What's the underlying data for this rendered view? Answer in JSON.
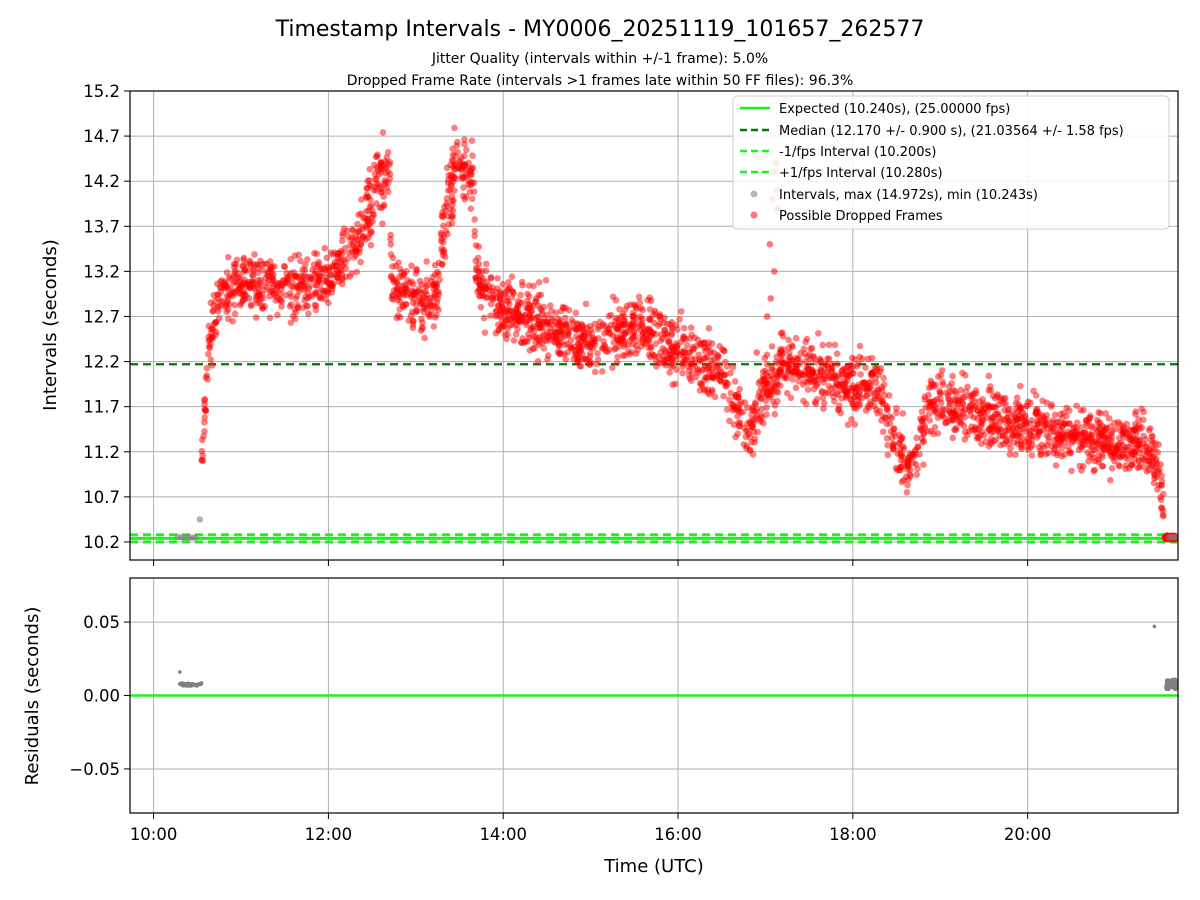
{
  "chart_data": [
    {
      "type": "scatter",
      "title": "Timestamp Intervals - MY0006_20251119_101657_262577",
      "subtitle_lines": [
        "Jitter Quality (intervals within +/-1 frame): 5.0%",
        "Dropped Frame Rate (intervals >1 frames late within 50 FF files): 96.3%"
      ],
      "xlabel": "",
      "ylabel": "Intervals (seconds)",
      "xlim_hours": [
        9.73,
        21.72
      ],
      "ylim": [
        10.0,
        15.2
      ],
      "yticks": [
        10.2,
        10.7,
        11.2,
        11.7,
        12.2,
        12.7,
        13.2,
        13.7,
        14.2,
        14.7,
        15.2
      ],
      "ytick_labels": [
        "10.2",
        "10.7",
        "11.2",
        "11.7",
        "12.2",
        "12.7",
        "13.2",
        "13.7",
        "14.2",
        "14.7",
        "15.2"
      ],
      "xticks_hours": [
        10,
        12,
        14,
        16,
        18,
        20
      ],
      "grid": true,
      "legend_position": "top-right",
      "reference_lines": [
        {
          "label": "Expected (10.240s), (25.00000 fps)",
          "value": 10.24,
          "style": "solid",
          "color": "#22ee22"
        },
        {
          "label": "Median (12.170 +/- 0.900 s), (21.03564 +/- 1.58 fps)",
          "value": 12.17,
          "style": "dashed",
          "color": "#007700"
        },
        {
          "label": "-1/fps Interval (10.200s)",
          "value": 10.2,
          "style": "dashed",
          "color": "#22ee22"
        },
        {
          "label": "+1/fps Interval (10.280s)",
          "value": 10.28,
          "style": "dashed",
          "color": "#22ee22"
        }
      ],
      "series": [
        {
          "name": "Intervals, max (14.972s), min (10.243s)",
          "color": "#808080",
          "points": [
            [
              10.28,
              10.255
            ],
            [
              10.32,
              10.25
            ],
            [
              10.36,
              10.247
            ],
            [
              10.4,
              10.25
            ],
            [
              10.44,
              10.248
            ],
            [
              10.48,
              10.25
            ],
            [
              10.53,
              10.45
            ],
            [
              21.62,
              10.252
            ],
            [
              21.66,
              10.25
            ],
            [
              21.7,
              10.255
            ]
          ]
        },
        {
          "name": "Possible Dropped Frames",
          "color": "#ff0000",
          "trend_hours": [
            10.55,
            10.62,
            10.72,
            11.0,
            11.5,
            12.0,
            12.4,
            12.55,
            12.7,
            12.72,
            13.0,
            13.25,
            13.3,
            13.45,
            13.65,
            13.7,
            14.0,
            14.5,
            15.0,
            15.5,
            16.0,
            16.5,
            16.7,
            16.8,
            17.0,
            17.2,
            17.5,
            18.0,
            18.3,
            18.5,
            18.7,
            18.9,
            19.5,
            20.0,
            20.5,
            21.0,
            21.3,
            21.5,
            21.56
          ],
          "trend_values": [
            11.1,
            12.3,
            12.8,
            13.1,
            13.0,
            13.1,
            13.6,
            14.2,
            14.3,
            13.0,
            12.9,
            12.9,
            13.6,
            14.4,
            14.3,
            13.0,
            12.8,
            12.6,
            12.4,
            12.6,
            12.3,
            12.1,
            11.6,
            11.4,
            11.9,
            12.2,
            12.1,
            11.9,
            11.9,
            11.2,
            11.1,
            11.8,
            11.6,
            11.5,
            11.4,
            11.3,
            11.3,
            11.0,
            10.6
          ],
          "notes": "Approximately 3000 points following the trend with spread of about +/-0.35 s; dense cluster at 10.25 s near 21.6 h; isolated high points near 17.05-17.15 h up to 14.6 s"
        }
      ]
    },
    {
      "type": "scatter",
      "title": "",
      "xlabel": "Time (UTC)",
      "ylabel": "Residuals (seconds)",
      "xlim_hours": [
        9.73,
        21.72
      ],
      "ylim": [
        -0.08,
        0.08
      ],
      "yticks": [
        -0.05,
        0.0,
        0.05
      ],
      "ytick_labels": [
        "−0.05",
        "0.00",
        "0.05"
      ],
      "xticks_hours": [
        10,
        12,
        14,
        16,
        18,
        20
      ],
      "xtick_labels": [
        "10:00",
        "12:00",
        "14:00",
        "16:00",
        "18:00",
        "20:00"
      ],
      "grid": true,
      "reference_lines": [
        {
          "label": "",
          "value": 0.0,
          "style": "solid",
          "color": "#22ee22"
        }
      ],
      "series": [
        {
          "name": "Residuals",
          "color": "#808080",
          "points": [
            [
              10.3,
              0.016
            ],
            [
              10.3,
              0.008
            ],
            [
              10.33,
              0.007
            ],
            [
              10.37,
              0.008
            ],
            [
              10.41,
              0.007
            ],
            [
              10.45,
              0.008
            ],
            [
              10.49,
              0.007
            ],
            [
              10.53,
              0.008
            ],
            [
              21.45,
              0.047
            ],
            [
              21.59,
              0.009
            ],
            [
              21.61,
              0.005
            ],
            [
              21.63,
              0.01
            ],
            [
              21.65,
              0.006
            ],
            [
              21.67,
              0.009
            ],
            [
              21.69,
              0.007
            ],
            [
              21.71,
              0.01
            ]
          ]
        }
      ]
    }
  ]
}
